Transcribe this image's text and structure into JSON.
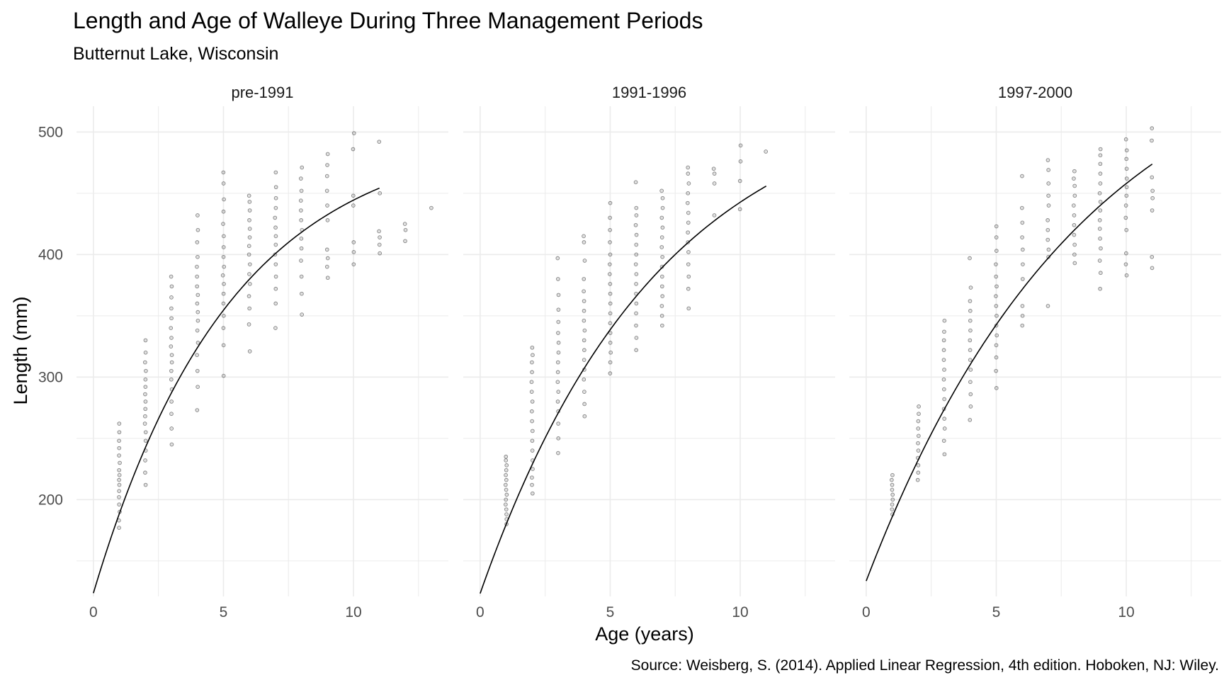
{
  "chart_data": {
    "type": "scatter",
    "title": "Length and Age of Walleye During Three Management Periods",
    "subtitle": "Butternut Lake, Wisconsin",
    "xlabel": "Age (years)",
    "ylabel": "Length (mm)",
    "caption": "Source: Weisberg, S. (2014). Applied Linear Regression, 4th edition. Hoboken, NJ: Wiley.",
    "xlim": [
      -0.65,
      13.65
    ],
    "ylim": [
      121,
      521
    ],
    "x_ticks": [
      0,
      5,
      10
    ],
    "y_ticks": [
      200,
      300,
      400,
      500
    ],
    "grid": true,
    "colors": {
      "point": "#000000",
      "line": "#000000",
      "grid": "#ebebeb"
    },
    "panels": [
      {
        "name": "pre-1991",
        "points": {
          "1": [
            177,
            183,
            190,
            196,
            202,
            207,
            212,
            216,
            220,
            224,
            230,
            236,
            242,
            248,
            255,
            262
          ],
          "2": [
            212,
            222,
            232,
            240,
            248,
            255,
            262,
            268,
            274,
            280,
            286,
            292,
            298,
            305,
            312,
            320,
            330
          ],
          "3": [
            245,
            258,
            270,
            280,
            290,
            298,
            305,
            312,
            318,
            325,
            332,
            340,
            348,
            356,
            365,
            374,
            382
          ],
          "4": [
            273,
            292,
            305,
            318,
            328,
            338,
            346,
            353,
            360,
            367,
            374,
            382,
            390,
            398,
            410,
            420,
            432
          ],
          "5": [
            301,
            326,
            340,
            350,
            360,
            368,
            376,
            383,
            390,
            398,
            406,
            415,
            425,
            435,
            445,
            458,
            467
          ],
          "6": [
            321,
            343,
            356,
            366,
            376,
            384,
            392,
            400,
            407,
            414,
            421,
            428,
            436,
            443,
            448
          ],
          "7": [
            340,
            360,
            372,
            382,
            392,
            400,
            408,
            415,
            422,
            430,
            438,
            446,
            455,
            467
          ],
          "8": [
            351,
            368,
            382,
            395,
            405,
            413,
            420,
            428,
            436,
            444,
            452,
            462,
            471
          ],
          "9": [
            381,
            390,
            397,
            404,
            428,
            440,
            452,
            464,
            473,
            482
          ],
          "10": [
            392,
            402,
            410,
            440,
            448,
            486,
            499
          ],
          "11": [
            401,
            408,
            414,
            419,
            450,
            492
          ],
          "12": [
            411,
            420,
            425
          ],
          "13": [
            438
          ]
        },
        "curve": {
          "x_max": 11,
          "Linf": 501.57,
          "K": 0.1888,
          "t0": -1.4997
        }
      },
      {
        "name": "1991-1996",
        "points": {
          "1": [
            180,
            184,
            188,
            192,
            196,
            200,
            204,
            208,
            212,
            216,
            220,
            224,
            228,
            232,
            235
          ],
          "2": [
            205,
            212,
            218,
            225,
            232,
            240,
            248,
            256,
            264,
            272,
            280,
            288,
            296,
            304,
            312,
            318,
            324
          ],
          "3": [
            238,
            250,
            262,
            272,
            280,
            288,
            296,
            304,
            312,
            320,
            328,
            336,
            345,
            355,
            367,
            380,
            397
          ],
          "4": [
            268,
            278,
            288,
            298,
            306,
            314,
            322,
            330,
            338,
            346,
            354,
            362,
            370,
            380,
            395,
            410,
            415
          ],
          "5": [
            303,
            312,
            320,
            328,
            336,
            344,
            352,
            360,
            368,
            376,
            384,
            392,
            400,
            410,
            420,
            430,
            442
          ],
          "6": [
            322,
            332,
            342,
            352,
            360,
            368,
            376,
            384,
            392,
            400,
            408,
            416,
            424,
            432,
            438,
            459
          ],
          "7": [
            342,
            350,
            358,
            366,
            374,
            382,
            390,
            398,
            406,
            414,
            422,
            430,
            438,
            446,
            452
          ],
          "8": [
            356,
            372,
            382,
            392,
            402,
            410,
            418,
            426,
            434,
            442,
            450,
            458,
            466,
            471
          ],
          "9": [
            432,
            458,
            466,
            470
          ],
          "10": [
            437,
            460,
            476,
            489
          ],
          "11": [
            484
          ]
        },
        "curve": {
          "x_max": 11,
          "Linf": 540,
          "K": 0.1454,
          "t0": -1.7843
        }
      },
      {
        "name": "1997-2000",
        "points": {
          "1": [
            188,
            192,
            196,
            200,
            204,
            208,
            212,
            216,
            220
          ],
          "2": [
            216,
            222,
            228,
            234,
            240,
            246,
            252,
            258,
            264,
            270,
            276
          ],
          "3": [
            237,
            248,
            258,
            266,
            274,
            282,
            290,
            298,
            306,
            314,
            322,
            330,
            337,
            346
          ],
          "4": [
            265,
            276,
            286,
            296,
            306,
            314,
            322,
            330,
            338,
            346,
            354,
            362,
            373,
            397
          ],
          "5": [
            291,
            305,
            316,
            326,
            334,
            342,
            350,
            358,
            366,
            374,
            382,
            392,
            403,
            414,
            423
          ],
          "6": [
            342,
            350,
            358,
            380,
            392,
            404,
            414,
            426,
            438,
            464
          ],
          "7": [
            358,
            398,
            404,
            412,
            420,
            428,
            440,
            448,
            458,
            469,
            477
          ],
          "8": [
            393,
            400,
            408,
            416,
            424,
            432,
            440,
            448,
            456,
            462,
            468
          ],
          "9": [
            372,
            385,
            395,
            405,
            413,
            421,
            428,
            436,
            443,
            450,
            458,
            466,
            474,
            481,
            486
          ],
          "10": [
            383,
            392,
            401,
            420,
            430,
            440,
            448,
            455,
            462,
            470,
            478,
            485,
            494
          ],
          "11": [
            389,
            398,
            436,
            446,
            452,
            463,
            493,
            503
          ]
        },
        "curve": {
          "x_max": 11,
          "Linf": 599.35,
          "K": 0.1192,
          "t0": -2.115
        }
      }
    ]
  }
}
